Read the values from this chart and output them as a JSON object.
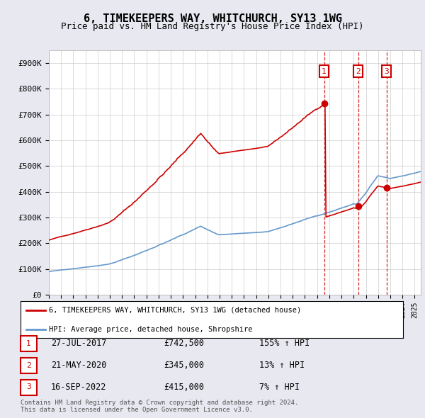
{
  "title": "6, TIMEKEEPERS WAY, WHITCHURCH, SY13 1WG",
  "subtitle": "Price paid vs. HM Land Registry's House Price Index (HPI)",
  "hpi_label": "6, TIMEKEEPERS WAY, WHITCHURCH, SY13 1WG (detached house)",
  "avg_label": "HPI: Average price, detached house, Shropshire",
  "sales": [
    {
      "num": 1,
      "date": "27-JUL-2017",
      "date_val": 2017.57,
      "price": 742500,
      "pct": "155%",
      "dir": "↑"
    },
    {
      "num": 2,
      "date": "21-MAY-2020",
      "date_val": 2020.38,
      "price": 345000,
      "pct": "13%",
      "dir": "↑"
    },
    {
      "num": 3,
      "date": "16-SEP-2022",
      "date_val": 2022.71,
      "price": 415000,
      "pct": "7%",
      "dir": "↑"
    }
  ],
  "ylabel_ticks": [
    "£0",
    "£100K",
    "£200K",
    "£300K",
    "£400K",
    "£500K",
    "£600K",
    "£700K",
    "£800K",
    "£900K"
  ],
  "ytick_vals": [
    0,
    100000,
    200000,
    300000,
    400000,
    500000,
    600000,
    700000,
    800000,
    900000
  ],
  "ylim": [
    0,
    950000
  ],
  "xlim_start": 1995.0,
  "xlim_end": 2025.5,
  "hpi_color": "#cc0000",
  "avg_color": "#6699cc",
  "background_color": "#e8e8f0",
  "plot_bg_color": "#ffffff",
  "grid_color": "#cccccc",
  "footnote": "Contains HM Land Registry data © Crown copyright and database right 2024.\nThis data is licensed under the Open Government Licence v3.0.",
  "sale_box_color": "#cc0000",
  "dashed_line_color": "#cc0000"
}
